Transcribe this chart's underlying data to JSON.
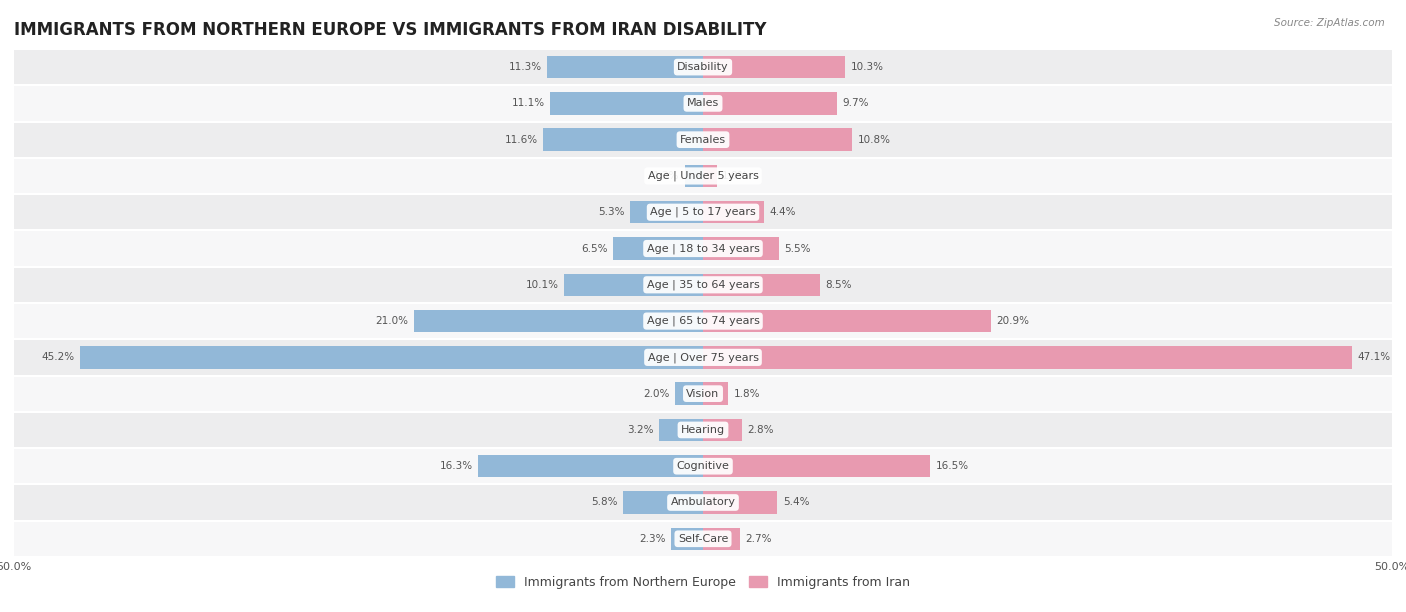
{
  "title": "IMMIGRANTS FROM NORTHERN EUROPE VS IMMIGRANTS FROM IRAN DISABILITY",
  "source": "Source: ZipAtlas.com",
  "categories": [
    "Disability",
    "Males",
    "Females",
    "Age | Under 5 years",
    "Age | 5 to 17 years",
    "Age | 18 to 34 years",
    "Age | 35 to 64 years",
    "Age | 65 to 74 years",
    "Age | Over 75 years",
    "Vision",
    "Hearing",
    "Cognitive",
    "Ambulatory",
    "Self-Care"
  ],
  "left_values": [
    11.3,
    11.1,
    11.6,
    1.3,
    5.3,
    6.5,
    10.1,
    21.0,
    45.2,
    2.0,
    3.2,
    16.3,
    5.8,
    2.3
  ],
  "right_values": [
    10.3,
    9.7,
    10.8,
    1.0,
    4.4,
    5.5,
    8.5,
    20.9,
    47.1,
    1.8,
    2.8,
    16.5,
    5.4,
    2.7
  ],
  "left_color": "#92b8d8",
  "right_color": "#e89ab0",
  "left_label": "Immigrants from Northern Europe",
  "right_label": "Immigrants from Iran",
  "axis_limit": 50.0,
  "bar_height": 0.62,
  "row_bg_even": "#ededee",
  "row_bg_odd": "#f7f7f8",
  "title_fontsize": 12,
  "label_fontsize": 8,
  "value_fontsize": 7.5,
  "legend_fontsize": 9
}
